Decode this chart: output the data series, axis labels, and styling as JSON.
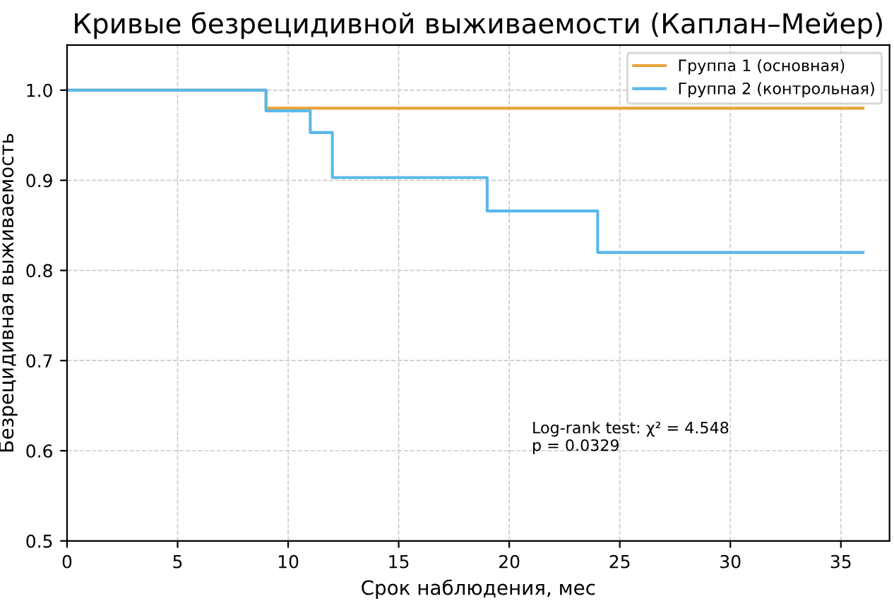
{
  "chart_data": {
    "type": "step",
    "title": "Кривые безрецидивной выживаемости (Каплан–Мейер)",
    "xlabel": "Срок наблюдения, мес",
    "ylabel": "Безрецидивная выживаемость",
    "series": [
      {
        "name": "Группа 1 (основная)",
        "color": "#e8a33a",
        "x": [
          0,
          9,
          36
        ],
        "values": [
          1.0,
          0.98,
          0.98
        ]
      },
      {
        "name": "Группа 2 (контрольная)",
        "color": "#5bb8ea",
        "x": [
          0,
          9,
          11,
          12,
          19,
          24,
          36
        ],
        "values": [
          1.0,
          0.977,
          0.953,
          0.903,
          0.866,
          0.82,
          0.82
        ]
      }
    ],
    "annotations": [
      "Log-rank test: χ² = 4.548\np = 0.0329"
    ],
    "xlim": [
      0,
      37.2
    ],
    "ylim": [
      0.5,
      1.05
    ],
    "xticks": [
      0,
      5,
      10,
      15,
      20,
      25,
      30,
      35
    ],
    "yticks": [
      0.5,
      0.6,
      0.7,
      0.8,
      0.9,
      {
        "value": 1.0,
        "label": "1.0"
      }
    ],
    "grid": true,
    "legend": "top right",
    "line_style": "solid",
    "marker": "none"
  }
}
